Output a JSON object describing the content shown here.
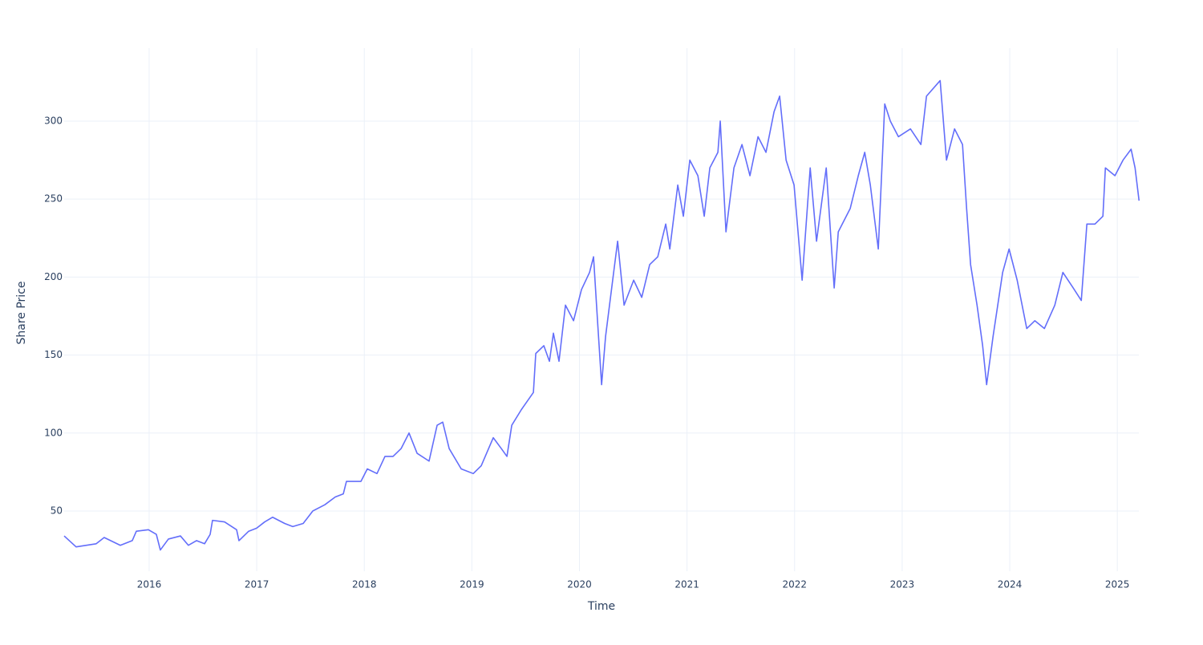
{
  "chart_data": {
    "type": "line",
    "x_label": "Time",
    "y_label": "Share Price",
    "x": [
      2015.21,
      2015.321,
      2015.508,
      2015.582,
      2015.732,
      2015.843,
      2015.881,
      2015.993,
      2016.067,
      2016.104,
      2016.179,
      2016.291,
      2016.365,
      2016.44,
      2016.515,
      2016.567,
      2016.589,
      2016.701,
      2016.813,
      2016.835,
      2016.925,
      2016.999,
      2017.074,
      2017.148,
      2017.26,
      2017.335,
      2017.432,
      2017.521,
      2017.633,
      2017.73,
      2017.805,
      2017.834,
      2017.969,
      2018.028,
      2018.118,
      2018.192,
      2018.267,
      2018.342,
      2018.416,
      2018.491,
      2018.602,
      2018.677,
      2018.729,
      2018.789,
      2018.901,
      2019.013,
      2019.087,
      2019.199,
      2019.274,
      2019.326,
      2019.371,
      2019.46,
      2019.572,
      2019.594,
      2019.669,
      2019.721,
      2019.758,
      2019.81,
      2019.87,
      2019.945,
      2020.019,
      2020.094,
      2020.131,
      2020.168,
      2020.206,
      2020.243,
      2020.318,
      2020.355,
      2020.415,
      2020.504,
      2020.579,
      2020.653,
      2020.728,
      2020.802,
      2020.84,
      2020.914,
      2020.966,
      2021.026,
      2021.101,
      2021.16,
      2021.212,
      2021.287,
      2021.309,
      2021.362,
      2021.436,
      2021.511,
      2021.585,
      2021.66,
      2021.734,
      2021.809,
      2021.861,
      2021.921,
      2021.995,
      2022.07,
      2022.145,
      2022.204,
      2022.294,
      2022.368,
      2022.406,
      2022.517,
      2022.592,
      2022.652,
      2022.704,
      2022.778,
      2022.838,
      2022.89,
      2022.965,
      2023.077,
      2023.174,
      2023.226,
      2023.353,
      2023.412,
      2023.487,
      2023.561,
      2023.599,
      2023.636,
      2023.696,
      2023.748,
      2023.785,
      2023.845,
      2023.934,
      2023.994,
      2024.069,
      2024.158,
      2024.233,
      2024.322,
      2024.419,
      2024.494,
      2024.59,
      2024.665,
      2024.717,
      2024.792,
      2024.866,
      2024.889,
      2024.978,
      2025.053,
      2025.128,
      2025.165,
      2025.202
    ],
    "values": [
      34,
      27,
      29,
      33,
      28,
      31,
      37,
      38,
      35,
      25,
      32,
      34,
      28,
      31,
      29,
      35,
      44,
      43,
      38,
      31,
      37,
      39,
      43,
      46,
      42,
      40,
      42,
      50,
      54,
      59,
      61,
      69,
      69,
      77,
      74,
      85,
      85,
      90,
      100,
      87,
      82,
      105,
      107,
      90,
      77,
      74,
      79,
      97,
      90,
      85,
      105,
      115,
      126,
      151,
      156,
      146,
      164,
      146,
      182,
      172,
      192,
      203,
      213,
      172,
      131,
      162,
      203,
      223,
      182,
      198,
      187,
      208,
      213,
      234,
      218,
      259,
      239,
      275,
      265,
      239,
      270,
      280,
      300,
      229,
      270,
      285,
      265,
      290,
      280,
      306,
      316,
      275,
      259,
      198,
      270,
      223,
      270,
      193,
      229,
      244,
      265,
      280,
      259,
      218,
      311,
      300,
      290,
      295,
      285,
      316,
      326,
      275,
      295,
      285,
      244,
      208,
      182,
      156,
      131,
      162,
      203,
      218,
      198,
      167,
      172,
      167,
      182,
      203,
      193,
      185,
      234,
      234,
      239,
      270,
      265,
      275,
      282,
      270,
      249
    ],
    "color": "#636efa",
    "xlim": [
      2015.21,
      2025.2
    ],
    "xticks": [
      2016,
      2017,
      2018,
      2019,
      2020,
      2021,
      2022,
      2023,
      2024,
      2025
    ],
    "ylim": [
      11.4,
      346.8
    ],
    "yticks": [
      50,
      100,
      150,
      200,
      250,
      300
    ],
    "grid": true
  }
}
